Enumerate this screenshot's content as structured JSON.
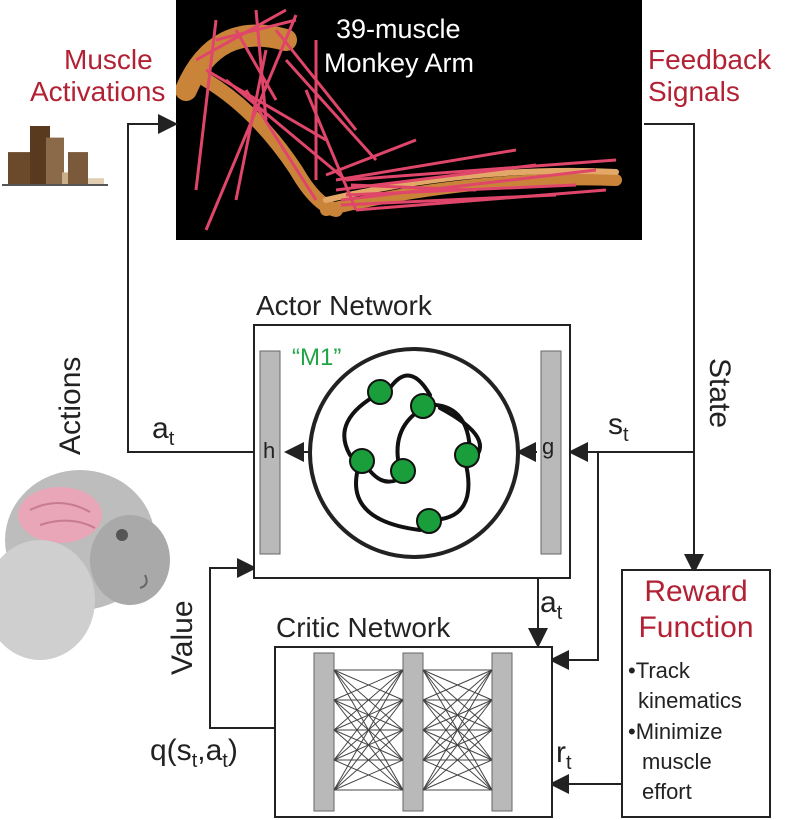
{
  "arm_panel": {
    "title_line1": "39-muscle",
    "title_line2": "Monkey Arm"
  },
  "muscle_activations": {
    "line1": "Muscle",
    "line2": "Activations"
  },
  "feedback_signals": {
    "line1": "Feedback",
    "line2": "Signals"
  },
  "actions_label": "Actions",
  "state_label": "State",
  "value_label": "Value",
  "actor": {
    "title": "Actor Network",
    "m1_label": "“M1”",
    "h_label": "h",
    "g_label": "g",
    "a_base": "a",
    "a_sub": "t",
    "s_base": "s",
    "s_sub": "t"
  },
  "critic": {
    "title": "Critic Network",
    "a_base": "a",
    "a_sub": "t",
    "q_prefix": "q(s",
    "q_sub1": "t",
    "q_mid": ",a",
    "q_sub2": "t",
    "q_suffix": ")"
  },
  "reward": {
    "title_line1": "Reward",
    "title_line2": "Function",
    "bullet1_line1": "•Track",
    "bullet1_line2": "kinematics",
    "bullet2_line1": "•Minimize",
    "bullet2_line2": "muscle",
    "bullet2_line3": "effort",
    "r_base": "r",
    "r_sub": "t"
  },
  "colors": {
    "accent_red": "#b22234",
    "neuron_green": "#1a9e3c",
    "m1_green": "#22a447",
    "muscle_pink": "#e0456a",
    "bone": "#c9843a",
    "layer_gray": "#b9b9b9"
  },
  "activation_bars": [
    0.55,
    1.0,
    0.8,
    0.2,
    0.55,
    0.1
  ]
}
